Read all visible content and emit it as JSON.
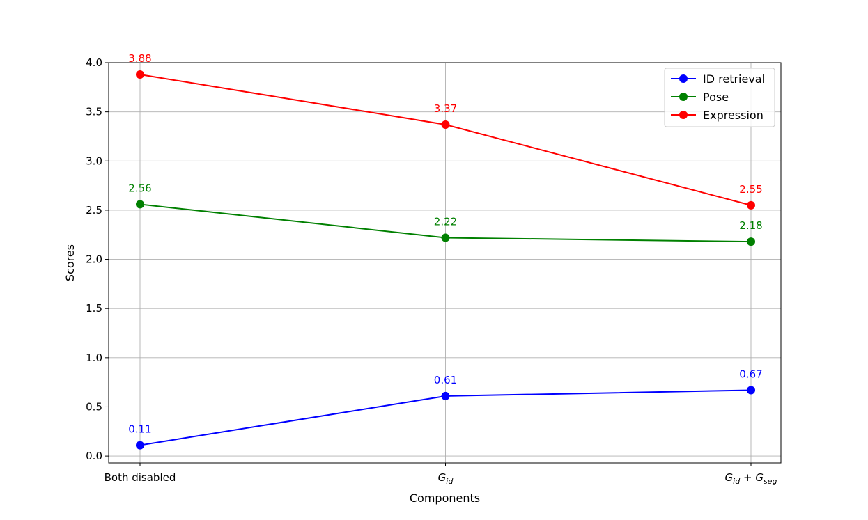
{
  "chart_data": {
    "type": "line",
    "categories": [
      "Both disabled",
      "G_id",
      "G_id + G_seg"
    ],
    "category_labels": [
      {
        "text": "Both disabled"
      },
      {
        "main": "G",
        "sub": "id"
      },
      {
        "main": "G",
        "sub": "id",
        "plus": " + ",
        "main2": "G",
        "sub2": "seg"
      }
    ],
    "series": [
      {
        "name": "ID retrieval",
        "color": "#0000ff",
        "values": [
          0.11,
          0.61,
          0.67
        ],
        "labels": [
          "0.11",
          "0.61",
          "0.67"
        ]
      },
      {
        "name": "Pose",
        "color": "#008000",
        "values": [
          2.56,
          2.22,
          2.18
        ],
        "labels": [
          "2.56",
          "2.22",
          "2.18"
        ]
      },
      {
        "name": "Expression",
        "color": "#ff0000",
        "values": [
          3.88,
          3.37,
          2.55
        ],
        "labels": [
          "3.88",
          "3.37",
          "2.55"
        ]
      }
    ],
    "xlabel": "Components",
    "ylabel": "Scores",
    "ylim": [
      -0.07,
      4.0
    ],
    "yticks": [
      0.0,
      0.5,
      1.0,
      1.5,
      2.0,
      2.5,
      3.0,
      3.5,
      4.0
    ],
    "ytick_labels": [
      "0.0",
      "0.5",
      "1.0",
      "1.5",
      "2.0",
      "2.5",
      "3.0",
      "3.5",
      "4.0"
    ],
    "grid": true,
    "legend": "top-right"
  }
}
